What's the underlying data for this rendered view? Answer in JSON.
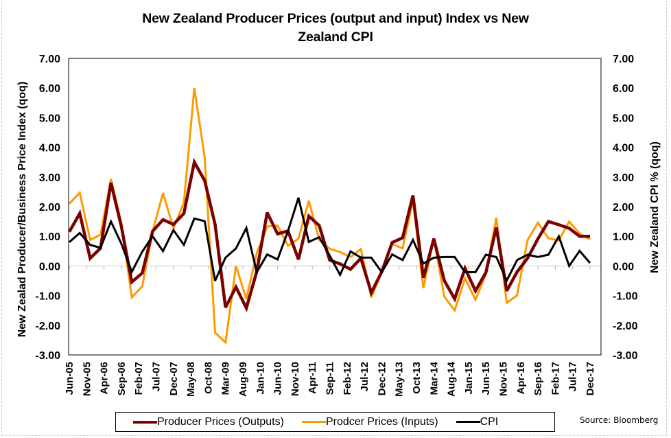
{
  "chart_data": {
    "type": "line",
    "title": "New Zealand Producer Prices (output and input) Index vs New Zealand CPI",
    "title_lines": [
      "New Zealand Producer Prices (output and input) Index vs New",
      "Zealand CPI"
    ],
    "ylabel": "New Zealad Producer/Business Price Index (qoq)",
    "y2label": "New Zealand CPI % (qoq)",
    "xlabel": "",
    "ylim": [
      -3,
      7
    ],
    "y2lim": [
      -3,
      7
    ],
    "yticks": [
      "7.00",
      "6.00",
      "5.00",
      "4.00",
      "3.00",
      "2.00",
      "1.00",
      "0.00",
      "-1.00",
      "-2.00",
      "-3.00"
    ],
    "y2ticks": [
      "7.00",
      "6.00",
      "5.00",
      "4.00",
      "3.00",
      "2.00",
      "1.00",
      "0.00",
      "-1.00",
      "-2.00",
      "-3.00"
    ],
    "x_tick_labels": [
      "Jun-05",
      "Nov-05",
      "Apr-06",
      "Sep-06",
      "Feb-07",
      "Jul-07",
      "Dec-07",
      "May-08",
      "Oct-08",
      "Mar-09",
      "Aug-09",
      "Jan-10",
      "Jun-10",
      "Nov-10",
      "Apr-11",
      "Sep-11",
      "Feb-12",
      "Jul-12",
      "Dec-12",
      "May-13",
      "Oct-13",
      "Mar-14",
      "Aug-14",
      "Jan-15",
      "Jun-15",
      "Nov-15",
      "Apr-16",
      "Sep-16",
      "Feb-17",
      "Jul-17",
      "Dec-17"
    ],
    "x_tick_interval_months": 5,
    "x_start": "Jun-05",
    "x_end": "Dec-17",
    "data_frequency": "quarterly",
    "grid": false,
    "zero_line": true,
    "legend_position": "bottom",
    "series": [
      {
        "name": "Producer Prices (Outputs)",
        "color": "#7b0000",
        "axis": "left",
        "values": [
          1.15,
          1.77,
          0.26,
          0.6,
          2.8,
          1.33,
          -0.54,
          -0.24,
          1.17,
          1.56,
          1.4,
          1.77,
          3.5,
          2.88,
          1.4,
          -1.4,
          -0.71,
          -1.42,
          -0.19,
          1.8,
          1.08,
          1.18,
          0.22,
          1.68,
          1.36,
          0.2,
          0.07,
          -0.11,
          0.26,
          -0.9,
          -0.2,
          0.79,
          0.95,
          2.38,
          -0.4,
          0.92,
          -0.49,
          -1.11,
          -0.08,
          -0.84,
          -0.22,
          1.3,
          -0.84,
          -0.2,
          0.26,
          0.92,
          1.5,
          1.39,
          1.27,
          1.0,
          1.0
        ]
      },
      {
        "name": "Prodcer Prices (Inputs)",
        "color": "#ff9900",
        "axis": "left",
        "values": [
          2.1,
          2.47,
          0.88,
          1.05,
          2.93,
          1.44,
          -1.06,
          -0.69,
          1.16,
          2.46,
          1.27,
          2.14,
          6.0,
          3.67,
          -2.25,
          -2.58,
          0.0,
          -1.11,
          0.43,
          1.33,
          1.36,
          0.68,
          0.92,
          2.2,
          0.88,
          0.58,
          0.47,
          0.3,
          0.57,
          -1.06,
          -0.2,
          0.74,
          0.59,
          2.22,
          -0.75,
          0.94,
          -1.03,
          -1.5,
          -0.42,
          -1.14,
          -0.28,
          1.63,
          -1.24,
          -0.99,
          0.87,
          1.46,
          0.93,
          0.86,
          1.5,
          1.09,
          0.9
        ]
      },
      {
        "name": "CPI",
        "color": "#000000",
        "axis": "right",
        "values": [
          0.8,
          1.11,
          0.71,
          0.61,
          1.5,
          0.75,
          -0.2,
          0.48,
          1.0,
          0.5,
          1.21,
          0.71,
          1.6,
          1.51,
          -0.5,
          0.28,
          0.59,
          1.28,
          -0.21,
          0.39,
          0.22,
          1.18,
          2.3,
          0.81,
          0.97,
          0.35,
          -0.3,
          0.49,
          0.28,
          0.28,
          -0.21,
          0.39,
          0.2,
          0.88,
          0.08,
          0.28,
          0.3,
          0.3,
          -0.21,
          -0.21,
          0.38,
          0.3,
          -0.49,
          0.2,
          0.38,
          0.3,
          0.38,
          1.0,
          0.0,
          0.51,
          0.1
        ]
      }
    ],
    "source": "Source: Bloomberg"
  },
  "legend": {
    "items": [
      {
        "label": "Producer Prices (Outputs)",
        "color": "#7b0000"
      },
      {
        "label": "Prodcer Prices (Inputs)",
        "color": "#ff9900"
      },
      {
        "label": "CPI",
        "color": "#000000"
      }
    ]
  },
  "source_note": "Source: Bloomberg"
}
